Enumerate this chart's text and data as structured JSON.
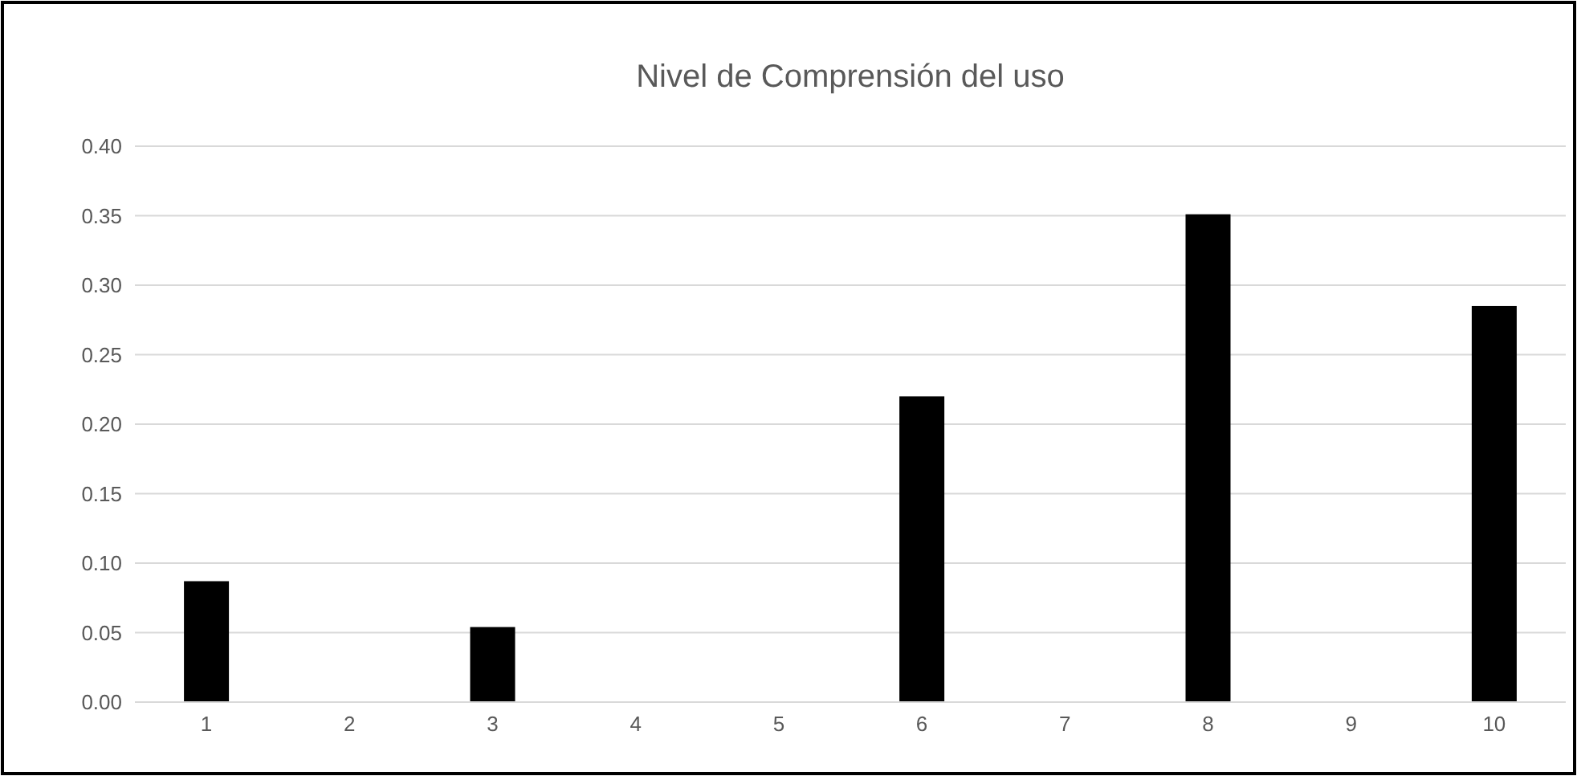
{
  "chart_data": {
    "type": "bar",
    "title": "Nivel de Comprensión del uso",
    "categories": [
      "1",
      "2",
      "3",
      "4",
      "5",
      "6",
      "7",
      "8",
      "9",
      "10"
    ],
    "values": [
      0.087,
      0,
      0.054,
      0,
      0,
      0.22,
      0,
      0.351,
      0,
      0.285
    ],
    "color": "#000000",
    "ylim": [
      0,
      0.4
    ],
    "yticks": [
      {
        "value": 0,
        "label": "0.00"
      },
      {
        "value": 0.05,
        "label": "0.05"
      },
      {
        "value": 0.1,
        "label": "0.10"
      },
      {
        "value": 0.15,
        "label": "0.15"
      },
      {
        "value": 0.2,
        "label": "0.20"
      },
      {
        "value": 0.25,
        "label": "0.25"
      },
      {
        "value": 0.3,
        "label": "0.30"
      },
      {
        "value": 0.35,
        "label": "0.35"
      },
      {
        "value": 0.4,
        "label": "0.40"
      }
    ],
    "grid": "y"
  }
}
